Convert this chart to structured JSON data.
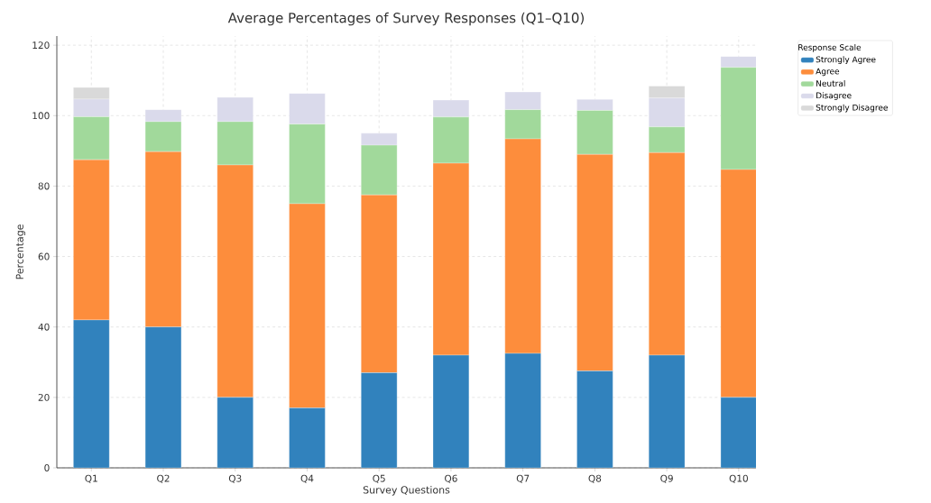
{
  "chart_data": {
    "type": "bar",
    "stacked": true,
    "title": "Average Percentages of Survey Responses (Q1–Q10)",
    "xlabel": "Survey Questions",
    "ylabel": "Percentage",
    "legend_title": "Response Scale",
    "categories": [
      "Q1",
      "Q2",
      "Q3",
      "Q4",
      "Q5",
      "Q6",
      "Q7",
      "Q8",
      "Q9",
      "Q10"
    ],
    "series": [
      {
        "name": "Strongly Agree",
        "color": "#3182bd",
        "values": [
          42,
          40,
          20,
          17,
          27,
          32,
          32.5,
          27.5,
          32,
          20
        ]
      },
      {
        "name": "Agree",
        "color": "#fd8d3c",
        "values": [
          45.5,
          49.8,
          66,
          58,
          50.5,
          54.5,
          60.9,
          61.5,
          57.5,
          64.7
        ]
      },
      {
        "name": "Neutral",
        "color": "#a1d99b",
        "values": [
          12.2,
          8.5,
          12.3,
          22.6,
          14.1,
          13.1,
          8.3,
          12.5,
          7.3,
          29
        ]
      },
      {
        "name": "Disagree",
        "color": "#dadaeb",
        "values": [
          5,
          3.4,
          6.9,
          8.7,
          3.4,
          4.8,
          5,
          3.1,
          8.2,
          3.1
        ]
      },
      {
        "name": "Strongly Disagree",
        "color": "#d9d9d9",
        "values": [
          3.3,
          0,
          0,
          0,
          0,
          0,
          0,
          0,
          3.4,
          0
        ]
      }
    ],
    "ylim": [
      0,
      122.6
    ],
    "yticks": [
      0,
      20,
      40,
      60,
      80,
      100,
      120
    ],
    "grid": true,
    "legend": "top right"
  }
}
